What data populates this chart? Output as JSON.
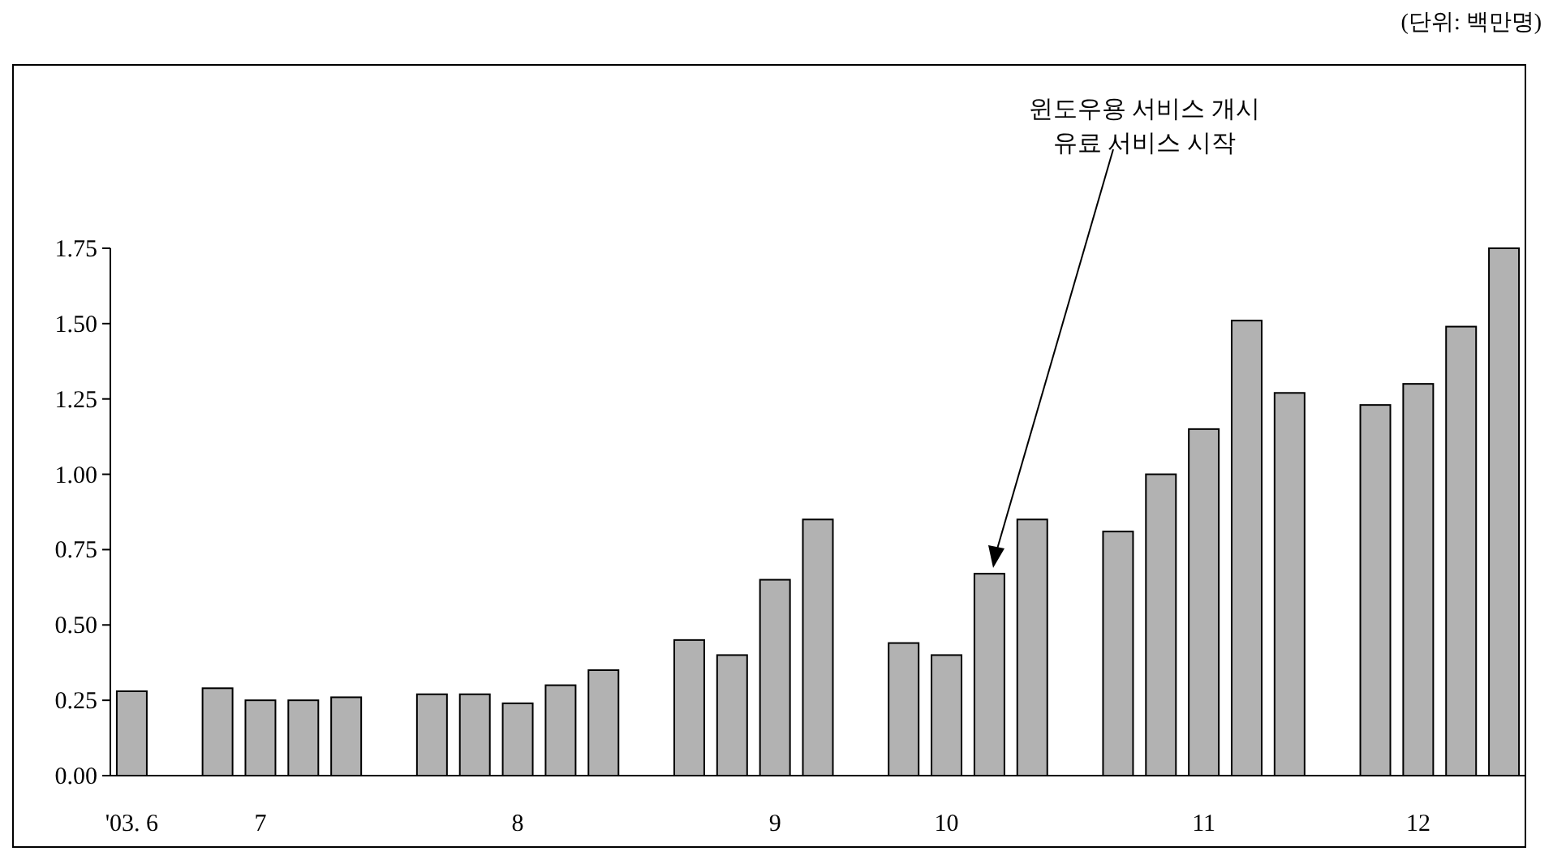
{
  "chart_data": {
    "type": "bar",
    "categories": [
      "'03. 6",
      null,
      null,
      "7",
      null,
      null,
      null,
      null,
      null,
      "8",
      null,
      null,
      null,
      null,
      null,
      "9",
      null,
      null,
      null,
      "10",
      null,
      null,
      null,
      null,
      null,
      "11",
      null,
      null,
      null,
      null,
      "12",
      null,
      null
    ],
    "values": [
      0.28,
      null,
      0.29,
      0.25,
      0.25,
      0.26,
      null,
      0.27,
      0.27,
      0.24,
      0.3,
      0.35,
      null,
      0.45,
      0.4,
      0.65,
      0.85,
      null,
      0.44,
      0.4,
      0.67,
      0.85,
      null,
      0.81,
      1.0,
      1.15,
      1.51,
      1.27,
      null,
      1.23,
      1.3,
      1.49,
      1.75
    ],
    "color": "#b2b2b2",
    "ylim": [
      0,
      1.75
    ],
    "yticks": [
      {
        "value": 0,
        "label": "0.00"
      },
      {
        "value": 0.25,
        "label": "0.25"
      },
      {
        "value": 0.5,
        "label": "0.50"
      },
      {
        "value": 0.75,
        "label": "0.75"
      },
      {
        "value": 1,
        "label": "1.00"
      },
      {
        "value": 1.25,
        "label": "1.25"
      },
      {
        "value": 1.5,
        "label": "1.50"
      },
      {
        "value": 1.75,
        "label": "1.75"
      }
    ],
    "grid": false,
    "annotations": [
      "(단위: 백만명)",
      "윈도우용 서비스 개시\n유료 서비스 시작"
    ]
  }
}
